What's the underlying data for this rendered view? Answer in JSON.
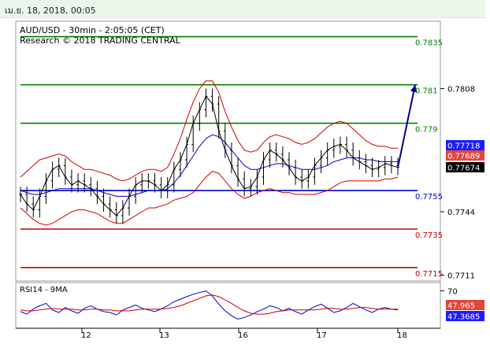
{
  "header": {
    "datetime": "เม.ย. 18, 2018, 00:05"
  },
  "chart_data": [
    {
      "type": "line",
      "title": "AUD/USD - 30min - 2:05:05 (CET)",
      "subtitle": "Research © 2018 TRADING CENTRAL",
      "ylim": [
        0.7708,
        0.7843
      ],
      "y_ticks": [
        "0.7808",
        "0.7744",
        "0.7711"
      ],
      "x_ticks": [
        "12",
        "13",
        "16",
        "17",
        "18"
      ],
      "levels": [
        {
          "value": 0.7835,
          "label": "0.7835",
          "color": "#008000"
        },
        {
          "value": 0.781,
          "label": "0.781",
          "color": "#008000"
        },
        {
          "value": 0.779,
          "label": "0.779",
          "color": "#008000"
        },
        {
          "value": 0.7755,
          "label": "0.7755",
          "color": "#0000cc"
        },
        {
          "value": 0.7735,
          "label": "0.7735",
          "color": "#cc0000"
        },
        {
          "value": 0.7715,
          "label": "0.7715",
          "color": "#cc0000"
        }
      ],
      "price_tags": [
        {
          "value": 0.77718,
          "label": "0.77718",
          "color": "#1c1cff"
        },
        {
          "value": 0.77689,
          "label": "0.77689",
          "color": "#e0463c"
        },
        {
          "value": 0.77674,
          "label": "0.77674",
          "color": "#000000"
        }
      ],
      "projection": {
        "from": [
          100,
          0.7767
        ],
        "to": [
          104,
          0.781
        ]
      },
      "series": [
        {
          "role": "price",
          "color": "#000000",
          "values": [
            0.7753,
            0.7748,
            0.7745,
            0.7752,
            0.776,
            0.7766,
            0.7768,
            0.7762,
            0.7758,
            0.776,
            0.7758,
            0.7756,
            0.7752,
            0.7748,
            0.7745,
            0.7742,
            0.7746,
            0.7752,
            0.7758,
            0.776,
            0.776,
            0.7758,
            0.7755,
            0.7758,
            0.7766,
            0.7771,
            0.7779,
            0.779,
            0.7797,
            0.7804,
            0.78,
            0.7786,
            0.7776,
            0.7768,
            0.7761,
            0.7756,
            0.7757,
            0.7762,
            0.7771,
            0.7776,
            0.7774,
            0.7771,
            0.7767,
            0.7762,
            0.776,
            0.7762,
            0.7768,
            0.7772,
            0.7776,
            0.7778,
            0.7779,
            0.7776,
            0.7772,
            0.777,
            0.7768,
            0.7766,
            0.7767,
            0.7769,
            0.7768,
            0.7767
          ]
        },
        {
          "role": "moving-average",
          "color": "#0000cc",
          "values": [
            0.7755,
            0.7754,
            0.7753,
            0.7753,
            0.7754,
            0.7755,
            0.7756,
            0.7756,
            0.7756,
            0.7756,
            0.7756,
            0.7756,
            0.7755,
            0.7754,
            0.7753,
            0.7752,
            0.7752,
            0.7752,
            0.7753,
            0.7754,
            0.7755,
            0.7755,
            0.7755,
            0.7756,
            0.7759,
            0.7763,
            0.7768,
            0.7773,
            0.7778,
            0.7782,
            0.7784,
            0.7783,
            0.778,
            0.7776,
            0.7772,
            0.7768,
            0.7766,
            0.7766,
            0.7767,
            0.7768,
            0.7769,
            0.7769,
            0.7768,
            0.7767,
            0.7766,
            0.7766,
            0.7766,
            0.7767,
            0.7768,
            0.777,
            0.7771,
            0.7772,
            0.7772,
            0.7772,
            0.7771,
            0.7771,
            0.777,
            0.777,
            0.777,
            0.777
          ]
        },
        {
          "role": "bollinger-upper",
          "color": "#cc0000",
          "values": [
            0.7762,
            0.7765,
            0.7768,
            0.7771,
            0.7772,
            0.7773,
            0.7774,
            0.7773,
            0.777,
            0.7768,
            0.7766,
            0.7766,
            0.7765,
            0.7764,
            0.7763,
            0.7761,
            0.776,
            0.7761,
            0.7763,
            0.7765,
            0.7766,
            0.7766,
            0.7765,
            0.7767,
            0.7774,
            0.7782,
            0.7792,
            0.7801,
            0.7808,
            0.7812,
            0.7812,
            0.7806,
            0.7796,
            0.7788,
            0.7781,
            0.7776,
            0.7775,
            0.7776,
            0.778,
            0.7783,
            0.7784,
            0.7783,
            0.7782,
            0.778,
            0.7779,
            0.778,
            0.7782,
            0.7785,
            0.7788,
            0.779,
            0.7791,
            0.779,
            0.7787,
            0.7784,
            0.7781,
            0.7779,
            0.7778,
            0.7778,
            0.7777,
            0.7777
          ]
        },
        {
          "role": "bollinger-lower",
          "color": "#cc0000",
          "values": [
            0.7746,
            0.7743,
            0.774,
            0.7738,
            0.7737,
            0.7738,
            0.774,
            0.7742,
            0.7744,
            0.7745,
            0.7745,
            0.7744,
            0.7743,
            0.7741,
            0.7739,
            0.7738,
            0.7738,
            0.774,
            0.7742,
            0.7744,
            0.7746,
            0.7746,
            0.7747,
            0.7748,
            0.775,
            0.7751,
            0.7752,
            0.7754,
            0.7758,
            0.7762,
            0.7765,
            0.7764,
            0.776,
            0.7756,
            0.7753,
            0.7751,
            0.7752,
            0.7754,
            0.7755,
            0.7756,
            0.7755,
            0.7754,
            0.7754,
            0.7753,
            0.7753,
            0.7753,
            0.7753,
            0.7754,
            0.7755,
            0.7757,
            0.7759,
            0.776,
            0.776,
            0.776,
            0.776,
            0.776,
            0.776,
            0.7761,
            0.7761,
            0.7762
          ]
        }
      ]
    },
    {
      "type": "line",
      "title": "RSI14 - 9MA",
      "ylim": [
        25,
        80
      ],
      "y_ticks": [
        "70"
      ],
      "price_tags": [
        {
          "value": 47.965,
          "label": "47.965",
          "color": "#e0463c"
        },
        {
          "value": 47.3685,
          "label": "47.3685",
          "color": "#1c1cff"
        }
      ],
      "series": [
        {
          "role": "rsi",
          "color": "#0000cc",
          "values": [
            45,
            42,
            48,
            52,
            55,
            47,
            44,
            50,
            46,
            43,
            49,
            52,
            48,
            45,
            44,
            41,
            47,
            50,
            53,
            49,
            47,
            45,
            48,
            52,
            57,
            60,
            63,
            66,
            68,
            70,
            64,
            54,
            46,
            40,
            36,
            38,
            41,
            45,
            48,
            52,
            50,
            46,
            49,
            45,
            42,
            47,
            51,
            54,
            49,
            44,
            46,
            50,
            55,
            51,
            47,
            44,
            48,
            50,
            48,
            47
          ]
        },
        {
          "role": "rsi-ma",
          "color": "#cc0000",
          "values": [
            47,
            46,
            46,
            47,
            48,
            49,
            48,
            48,
            48,
            47,
            47,
            48,
            48,
            47,
            47,
            46,
            46,
            46,
            47,
            48,
            48,
            48,
            48,
            49,
            50,
            52,
            55,
            58,
            61,
            64,
            65,
            63,
            59,
            55,
            50,
            46,
            43,
            42,
            42,
            43,
            45,
            46,
            47,
            47,
            47,
            47,
            47,
            48,
            49,
            49,
            48,
            48,
            49,
            50,
            50,
            49,
            48,
            48,
            48,
            48
          ]
        }
      ]
    }
  ]
}
